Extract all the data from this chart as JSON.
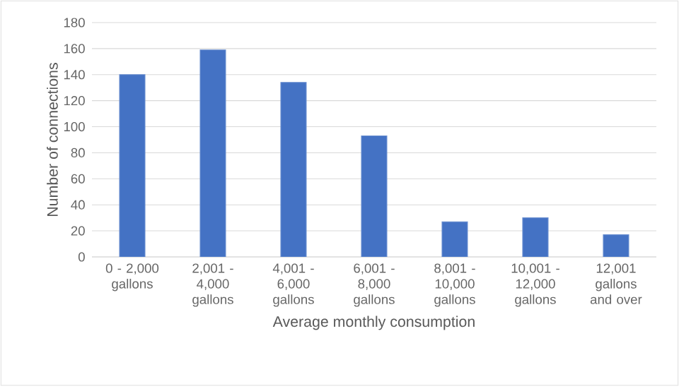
{
  "chart_data": {
    "type": "bar",
    "xlabel": "Average monthly consumption",
    "ylabel": "Number of connections",
    "categories": [
      "0 - 2,000 gallons",
      "2,001 - 4,000 gallons",
      "4,001 - 6,000 gallons",
      "6,001 - 8,000 gallons",
      "8,001 - 10,000 gallons",
      "10,001 - 12,000 gallons",
      "12,001 gallons and over"
    ],
    "values": [
      140,
      159,
      134,
      93,
      27,
      30,
      17
    ],
    "color": "#4472c4",
    "ylim": [
      0,
      180
    ],
    "yticks": [
      0,
      20,
      40,
      60,
      80,
      100,
      120,
      140,
      160,
      180
    ],
    "grid": "y"
  }
}
